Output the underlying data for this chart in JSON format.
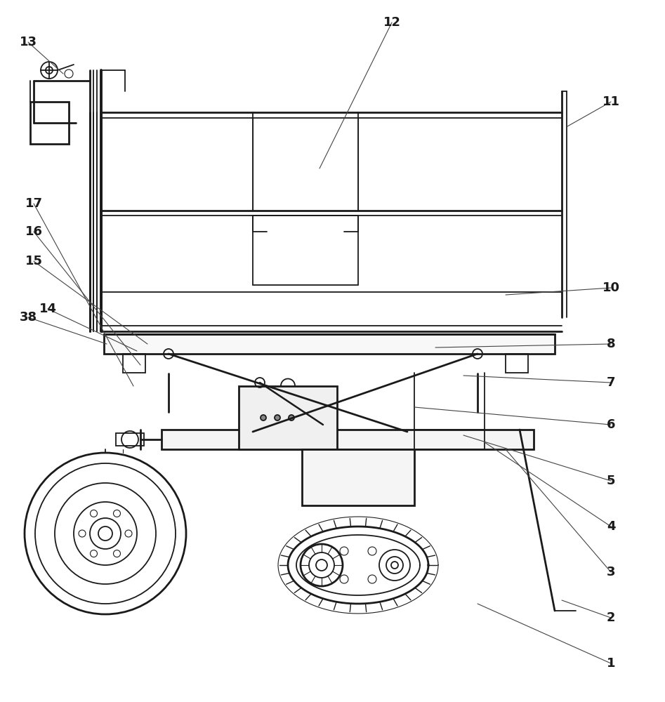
{
  "bg_color": "#ffffff",
  "line_color": "#1a1a1a",
  "fig_width": 9.47,
  "fig_height": 10.0,
  "lw_thin": 0.8,
  "lw_med": 1.3,
  "lw_thick": 2.0,
  "lw_xthick": 2.8
}
